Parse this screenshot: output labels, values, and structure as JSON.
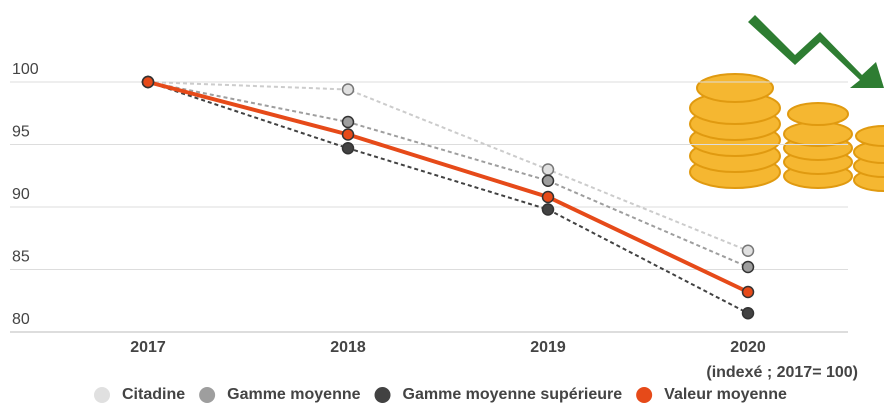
{
  "chart_data": {
    "type": "line",
    "categories": [
      "2017",
      "2018",
      "2019",
      "2020"
    ],
    "series": [
      {
        "name": "Citadine",
        "color": "#e0e0e0",
        "dashed": true,
        "values": [
          100,
          99.4,
          93.0,
          86.5
        ]
      },
      {
        "name": "Gamme moyenne",
        "color": "#9e9e9e",
        "dashed": true,
        "values": [
          100,
          96.8,
          92.1,
          85.2
        ]
      },
      {
        "name": "Gamme moyenne supérieure",
        "color": "#424242",
        "dashed": true,
        "values": [
          100,
          94.7,
          89.8,
          81.5
        ]
      },
      {
        "name": "Valeur moyenne",
        "color": "#e64a19",
        "dashed": false,
        "values": [
          100,
          95.8,
          90.8,
          83.2
        ]
      }
    ],
    "ylim": [
      80,
      100
    ],
    "yticks": [
      80,
      85,
      90,
      95,
      100
    ],
    "grid": true,
    "note": "(indexé ; 2017= 100)",
    "legend": "bottom"
  }
}
